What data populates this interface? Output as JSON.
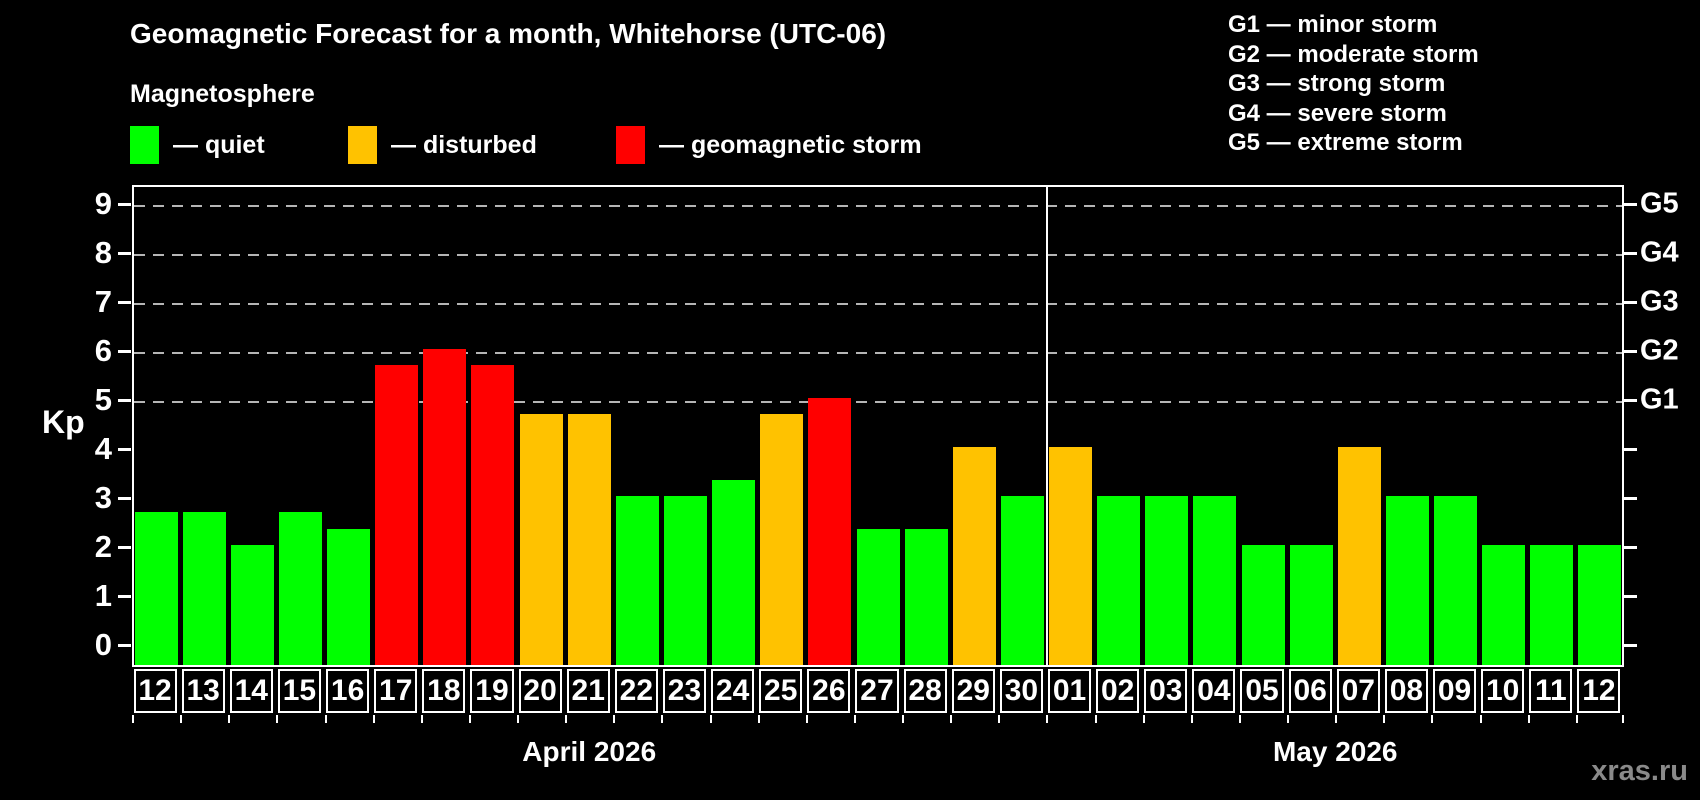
{
  "title": "Geomagnetic Forecast for a month, Whitehorse (UTC-06)",
  "subtitle": "Magnetosphere",
  "watermark": "xras.ru",
  "legend": {
    "items": [
      {
        "status": "quiet",
        "label": "— quiet",
        "color": "#00ff00",
        "x": 130
      },
      {
        "status": "disturbed",
        "label": "— disturbed",
        "color": "#ffc200",
        "x": 348
      },
      {
        "status": "storm",
        "label": "— geomagnetic storm",
        "color": "#ff0000",
        "x": 616
      }
    ]
  },
  "g_scale_legend": [
    "G1 — minor storm",
    "G2 — moderate storm",
    "G3 — strong storm",
    "G4 — severe storm",
    "G5 — extreme storm"
  ],
  "chart_data": {
    "type": "bar",
    "title": "Geomagnetic Forecast for a month, Whitehorse (UTC-06)",
    "ylabel": "Kp",
    "ylim": [
      0,
      9
    ],
    "y_ticks": [
      0,
      1,
      2,
      3,
      4,
      5,
      6,
      7,
      8,
      9
    ],
    "grid_kp": [
      5,
      6,
      7,
      8,
      9
    ],
    "grid_style": "dashed",
    "legend_position": "top",
    "right_axis_labels": [
      {
        "kp": 5,
        "label": "G1"
      },
      {
        "kp": 6,
        "label": "G2"
      },
      {
        "kp": 7,
        "label": "G3"
      },
      {
        "kp": 8,
        "label": "G4"
      },
      {
        "kp": 9,
        "label": "G5"
      }
    ],
    "status_colors": {
      "quiet": "#00ff00",
      "disturbed": "#ffc200",
      "storm": "#ff0000"
    },
    "groups": [
      {
        "month": "April 2026",
        "days": [
          {
            "day": "12",
            "kp": 2.67,
            "status": "quiet"
          },
          {
            "day": "13",
            "kp": 2.67,
            "status": "quiet"
          },
          {
            "day": "14",
            "kp": 2.0,
            "status": "quiet"
          },
          {
            "day": "15",
            "kp": 2.67,
            "status": "quiet"
          },
          {
            "day": "16",
            "kp": 2.33,
            "status": "quiet"
          },
          {
            "day": "17",
            "kp": 5.67,
            "status": "storm"
          },
          {
            "day": "18",
            "kp": 6.0,
            "status": "storm"
          },
          {
            "day": "19",
            "kp": 5.67,
            "status": "storm"
          },
          {
            "day": "20",
            "kp": 4.67,
            "status": "disturbed"
          },
          {
            "day": "21",
            "kp": 4.67,
            "status": "disturbed"
          },
          {
            "day": "22",
            "kp": 3.0,
            "status": "quiet"
          },
          {
            "day": "23",
            "kp": 3.0,
            "status": "quiet"
          },
          {
            "day": "24",
            "kp": 3.33,
            "status": "quiet"
          },
          {
            "day": "25",
            "kp": 4.67,
            "status": "disturbed"
          },
          {
            "day": "26",
            "kp": 5.0,
            "status": "storm"
          },
          {
            "day": "27",
            "kp": 2.33,
            "status": "quiet"
          },
          {
            "day": "28",
            "kp": 2.33,
            "status": "quiet"
          },
          {
            "day": "29",
            "kp": 4.0,
            "status": "disturbed"
          },
          {
            "day": "30",
            "kp": 3.0,
            "status": "quiet"
          }
        ]
      },
      {
        "month": "May 2026",
        "days": [
          {
            "day": "01",
            "kp": 4.0,
            "status": "disturbed"
          },
          {
            "day": "02",
            "kp": 3.0,
            "status": "quiet"
          },
          {
            "day": "03",
            "kp": 3.0,
            "status": "quiet"
          },
          {
            "day": "04",
            "kp": 3.0,
            "status": "quiet"
          },
          {
            "day": "05",
            "kp": 2.0,
            "status": "quiet"
          },
          {
            "day": "06",
            "kp": 2.0,
            "status": "quiet"
          },
          {
            "day": "07",
            "kp": 4.0,
            "status": "disturbed"
          },
          {
            "day": "08",
            "kp": 3.0,
            "status": "quiet"
          },
          {
            "day": "09",
            "kp": 3.0,
            "status": "quiet"
          },
          {
            "day": "10",
            "kp": 2.0,
            "status": "quiet"
          },
          {
            "day": "11",
            "kp": 2.0,
            "status": "quiet"
          },
          {
            "day": "12",
            "kp": 2.0,
            "status": "quiet"
          }
        ]
      }
    ]
  }
}
